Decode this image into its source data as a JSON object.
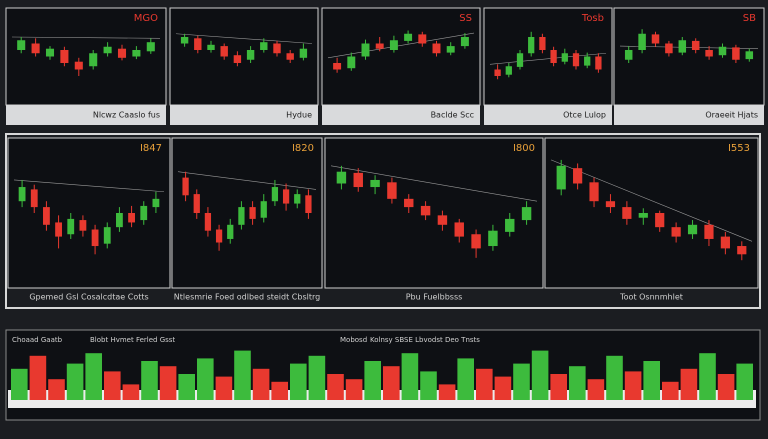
{
  "price_range": [
    0,
    100
  ],
  "top_panels": [
    {
      "title": "MGO",
      "footer": "Nlcwz Caaslo fus",
      "candles": [
        [
          60,
          75,
          80,
          55
        ],
        [
          70,
          55,
          78,
          50
        ],
        [
          50,
          62,
          66,
          45
        ],
        [
          60,
          40,
          65,
          35
        ],
        [
          42,
          30,
          48,
          20
        ],
        [
          35,
          55,
          60,
          30
        ],
        [
          55,
          65,
          72,
          50
        ],
        [
          62,
          48,
          68,
          44
        ],
        [
          50,
          60,
          66,
          46
        ],
        [
          58,
          72,
          78,
          54
        ]
      ]
    },
    {
      "title": "",
      "footer": "Hydue",
      "candles": [
        [
          70,
          80,
          85,
          65
        ],
        [
          78,
          60,
          82,
          55
        ],
        [
          60,
          68,
          74,
          56
        ],
        [
          66,
          50,
          70,
          45
        ],
        [
          52,
          40,
          58,
          35
        ],
        [
          45,
          60,
          66,
          40
        ],
        [
          60,
          72,
          78,
          56
        ],
        [
          70,
          55,
          74,
          50
        ],
        [
          55,
          45,
          60,
          40
        ],
        [
          48,
          62,
          70,
          44
        ]
      ]
    },
    {
      "title": "SS",
      "footer": "Baclde Scc",
      "candles": [
        [
          40,
          30,
          48,
          25
        ],
        [
          32,
          50,
          56,
          28
        ],
        [
          50,
          70,
          76,
          45
        ],
        [
          70,
          62,
          80,
          58
        ],
        [
          60,
          75,
          82,
          56
        ],
        [
          74,
          85,
          90,
          70
        ],
        [
          84,
          70,
          88,
          65
        ],
        [
          70,
          55,
          74,
          50
        ],
        [
          56,
          66,
          72,
          52
        ],
        [
          66,
          80,
          86,
          62
        ]
      ]
    },
    {
      "title": "Tosb",
      "footer": "Otce Lulop",
      "candles": [
        [
          30,
          20,
          38,
          15
        ],
        [
          22,
          35,
          40,
          18
        ],
        [
          34,
          55,
          60,
          30
        ],
        [
          55,
          80,
          88,
          50
        ],
        [
          80,
          60,
          85,
          55
        ],
        [
          60,
          40,
          65,
          35
        ],
        [
          42,
          55,
          62,
          38
        ],
        [
          55,
          35,
          60,
          30
        ],
        [
          36,
          50,
          56,
          32
        ],
        [
          50,
          30,
          55,
          25
        ]
      ]
    },
    {
      "title": "SB",
      "footer": "Oraeeit Hjats",
      "candles": [
        [
          45,
          60,
          66,
          40
        ],
        [
          60,
          85,
          92,
          55
        ],
        [
          84,
          70,
          88,
          65
        ],
        [
          70,
          55,
          74,
          50
        ],
        [
          56,
          75,
          80,
          52
        ],
        [
          74,
          60,
          78,
          55
        ],
        [
          60,
          50,
          66,
          45
        ],
        [
          52,
          65,
          70,
          48
        ],
        [
          64,
          45,
          68,
          40
        ],
        [
          46,
          58,
          62,
          42
        ]
      ]
    }
  ],
  "middle_panels": [
    {
      "title": "I847",
      "footer": "Gpemed Gsl Cosalcdtae Cotts",
      "candles": [
        [
          60,
          72,
          78,
          55
        ],
        [
          70,
          55,
          74,
          50
        ],
        [
          55,
          40,
          60,
          35
        ],
        [
          42,
          30,
          48,
          20
        ],
        [
          32,
          45,
          50,
          28
        ],
        [
          44,
          35,
          48,
          30
        ],
        [
          36,
          22,
          40,
          15
        ],
        [
          24,
          38,
          42,
          20
        ],
        [
          38,
          50,
          55,
          34
        ],
        [
          50,
          42,
          56,
          38
        ],
        [
          44,
          56,
          60,
          40
        ],
        [
          55,
          62,
          68,
          50
        ]
      ]
    },
    {
      "title": "I820",
      "footer": "Ntlesmrie Foed odlbed steidt Cbsltrg",
      "candles": [
        [
          80,
          65,
          85,
          60
        ],
        [
          66,
          50,
          70,
          45
        ],
        [
          50,
          35,
          55,
          30
        ],
        [
          36,
          25,
          40,
          18
        ],
        [
          28,
          40,
          45,
          24
        ],
        [
          40,
          55,
          60,
          36
        ],
        [
          55,
          45,
          60,
          40
        ],
        [
          46,
          60,
          66,
          42
        ],
        [
          60,
          72,
          78,
          56
        ],
        [
          70,
          58,
          75,
          52
        ],
        [
          58,
          66,
          70,
          54
        ],
        [
          65,
          50,
          70,
          45
        ]
      ]
    },
    {
      "title": "I800",
      "footer": "Pbu Fuelbbsss",
      "candles": [
        [
          75,
          85,
          90,
          70
        ],
        [
          84,
          72,
          88,
          68
        ],
        [
          72,
          78,
          82,
          66
        ],
        [
          76,
          62,
          80,
          58
        ],
        [
          62,
          55,
          66,
          50
        ],
        [
          56,
          48,
          60,
          44
        ],
        [
          48,
          40,
          52,
          35
        ],
        [
          42,
          30,
          45,
          25
        ],
        [
          32,
          20,
          36,
          12
        ],
        [
          22,
          35,
          40,
          18
        ],
        [
          34,
          45,
          50,
          30
        ],
        [
          44,
          55,
          60,
          40
        ]
      ]
    },
    {
      "title": "I553",
      "footer": "Toot Osnnmhlet",
      "candles": [
        [
          70,
          90,
          95,
          65
        ],
        [
          88,
          75,
          92,
          70
        ],
        [
          76,
          60,
          80,
          55
        ],
        [
          60,
          55,
          66,
          50
        ],
        [
          55,
          45,
          60,
          40
        ],
        [
          46,
          50,
          54,
          40
        ],
        [
          50,
          38,
          52,
          34
        ],
        [
          38,
          30,
          42,
          25
        ],
        [
          32,
          40,
          44,
          28
        ],
        [
          40,
          28,
          44,
          22
        ],
        [
          30,
          20,
          34,
          15
        ],
        [
          22,
          15,
          26,
          10
        ]
      ]
    }
  ],
  "volume_panel": {
    "labels": [
      "Choaad Gaatb",
      "Blobt Hvmet Ferled Gsst",
      "Mobosd",
      "Kolnsy SBSE Lbvodst Deo Tnsts"
    ],
    "values": [
      60,
      85,
      40,
      70,
      90,
      55,
      30,
      75,
      65,
      50,
      80,
      45,
      95,
      60,
      35,
      70,
      85,
      50,
      40,
      75,
      65,
      90,
      55,
      30,
      80,
      60,
      45,
      70,
      95,
      50,
      65,
      40,
      85,
      55,
      75,
      35,
      60,
      90,
      50,
      70
    ],
    "up": [
      1,
      0,
      0,
      1,
      1,
      0,
      0,
      1,
      0,
      1,
      1,
      0,
      1,
      0,
      0,
      1,
      1,
      0,
      0,
      1,
      0,
      1,
      1,
      0,
      1,
      0,
      0,
      1,
      1,
      0,
      1,
      0,
      1,
      0,
      1,
      0,
      0,
      1,
      0,
      1
    ],
    "range": [
      0,
      100
    ]
  }
}
